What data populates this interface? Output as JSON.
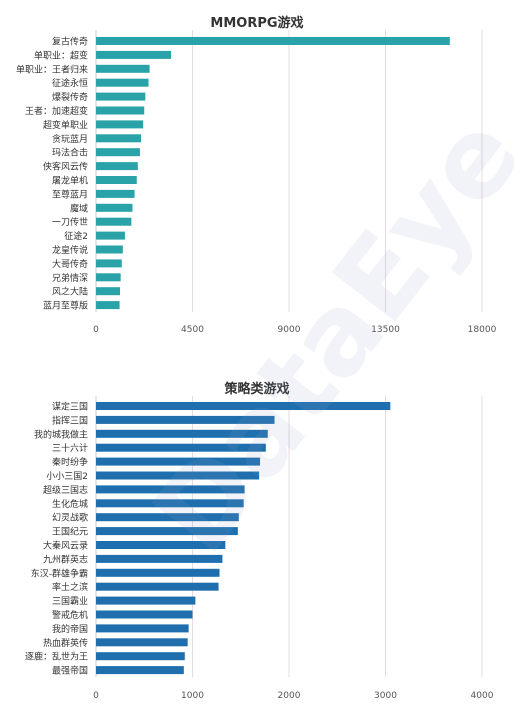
{
  "watermark": "DataEye",
  "chart_data": [
    {
      "type": "bar",
      "orientation": "horizontal",
      "title": "MMORPG游戏",
      "color": "#2aa3a8",
      "categories": [
        "复古传奇",
        "单职业：超变",
        "单职业：王者归来",
        "征途永恒",
        "爆裂传奇",
        "王者：加速超变",
        "超变单职业",
        "贪玩蓝月",
        "玛法合击",
        "侠客风云传",
        "屠龙单机",
        "至尊蓝月",
        "魔域",
        "一刀传世",
        "征途2",
        "龙皇传说",
        "大哥传奇",
        "兄弟情深",
        "风之大陆",
        "蓝月至尊版"
      ],
      "values": [
        16500,
        3500,
        2500,
        2450,
        2300,
        2250,
        2200,
        2100,
        2050,
        1950,
        1900,
        1800,
        1700,
        1650,
        1350,
        1250,
        1200,
        1150,
        1120,
        1100
      ],
      "xlim": [
        0,
        18000
      ],
      "ticks": [
        "0",
        "4500",
        "9000",
        "13500",
        "18000"
      ],
      "tick_values": [
        0,
        4500,
        9000,
        13500,
        18000
      ],
      "grid": true
    },
    {
      "type": "bar",
      "orientation": "horizontal",
      "title": "策略类游戏",
      "color": "#1f6fae",
      "categories": [
        "谋定三国",
        "指挥三国",
        "我的城我做主",
        "三十六计",
        "秦时纷争",
        "小小三国2",
        "超级三国志",
        "生化危城",
        "幻灵战歌",
        "王国纪元",
        "大秦风云录",
        "九州群英志",
        "东汉-群雄争霸",
        "率土之滨",
        "三国霸业",
        "警戒危机",
        "我的帝国",
        "热血群英传",
        "逐鹿：乱世为王",
        "最强帝国"
      ],
      "values": [
        3050,
        1850,
        1780,
        1760,
        1700,
        1690,
        1540,
        1530,
        1480,
        1470,
        1340,
        1310,
        1280,
        1270,
        1030,
        1000,
        960,
        950,
        920,
        910
      ],
      "xlim": [
        0,
        4000
      ],
      "ticks": [
        "0",
        "1000",
        "2000",
        "3000",
        "4000"
      ],
      "tick_values": [
        0,
        1000,
        2000,
        3000,
        4000
      ],
      "grid": true
    }
  ]
}
